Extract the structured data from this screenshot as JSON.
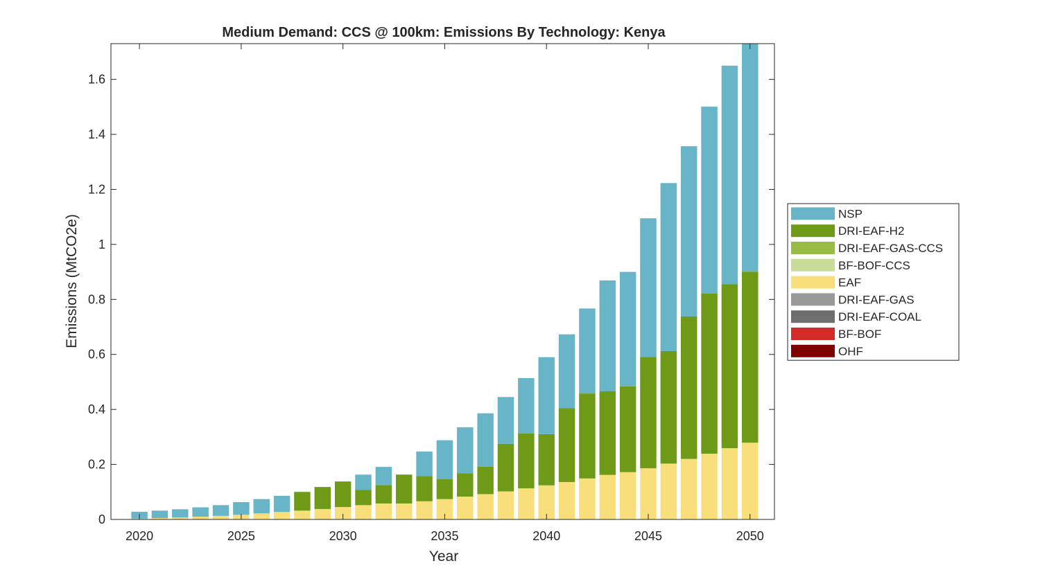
{
  "chart_data": {
    "type": "bar",
    "stacked": true,
    "title": "Medium Demand: CCS @ 100km: Emissions By Technology: Kenya",
    "xlabel": "Year",
    "ylabel": "Emissions (MtCO2e)",
    "xlim": [
      2018.6,
      2051.2
    ],
    "ylim": [
      0,
      1.73
    ],
    "xticks": [
      2020,
      2025,
      2030,
      2035,
      2040,
      2045,
      2050
    ],
    "xtick_labels": [
      "2020",
      "2025",
      "2030",
      "2035",
      "2040",
      "2045",
      "2050"
    ],
    "yticks": [
      0,
      0.2,
      0.4,
      0.6,
      0.8,
      1.0,
      1.2,
      1.4,
      1.6
    ],
    "ytick_labels": [
      "0",
      "0.2",
      "0.4",
      "0.6",
      "0.8",
      "1",
      "1.2",
      "1.4",
      "1.6"
    ],
    "grid": false,
    "legend_position": "outside-right",
    "categories": [
      2020,
      2021,
      2022,
      2023,
      2024,
      2025,
      2026,
      2027,
      2028,
      2029,
      2030,
      2031,
      2032,
      2033,
      2034,
      2035,
      2036,
      2037,
      2038,
      2039,
      2040,
      2041,
      2042,
      2043,
      2044,
      2045,
      2046,
      2047,
      2048,
      2049,
      2050
    ],
    "series": [
      {
        "name": "OHF",
        "color": "#7e0000",
        "values": [
          0,
          0,
          0,
          0,
          0,
          0,
          0,
          0,
          0,
          0,
          0,
          0,
          0,
          0,
          0,
          0,
          0,
          0,
          0,
          0,
          0,
          0,
          0,
          0,
          0,
          0,
          0,
          0,
          0,
          0,
          0
        ]
      },
      {
        "name": "BF-BOF",
        "color": "#d42a2a",
        "values": [
          0,
          0,
          0,
          0,
          0,
          0,
          0,
          0,
          0,
          0,
          0,
          0,
          0,
          0,
          0,
          0,
          0,
          0,
          0,
          0,
          0,
          0,
          0,
          0,
          0,
          0,
          0,
          0,
          0,
          0,
          0
        ]
      },
      {
        "name": "DRI-EAF-COAL",
        "color": "#6e6e6e",
        "values": [
          0,
          0,
          0,
          0,
          0,
          0,
          0,
          0,
          0,
          0,
          0,
          0,
          0,
          0,
          0,
          0,
          0,
          0,
          0,
          0,
          0,
          0,
          0,
          0,
          0,
          0,
          0,
          0,
          0,
          0,
          0
        ]
      },
      {
        "name": "DRI-EAF-GAS",
        "color": "#999999",
        "values": [
          0,
          0,
          0,
          0,
          0,
          0,
          0,
          0,
          0,
          0,
          0,
          0,
          0,
          0,
          0,
          0,
          0,
          0,
          0,
          0,
          0,
          0,
          0,
          0,
          0,
          0,
          0,
          0,
          0,
          0,
          0
        ]
      },
      {
        "name": "EAF",
        "color": "#f8df7c",
        "values": [
          0.003,
          0.005,
          0.007,
          0.01,
          0.013,
          0.017,
          0.022,
          0.027,
          0.032,
          0.038,
          0.045,
          0.052,
          0.058,
          0.058,
          0.066,
          0.074,
          0.083,
          0.092,
          0.102,
          0.113,
          0.124,
          0.136,
          0.149,
          0.162,
          0.172,
          0.186,
          0.203,
          0.22,
          0.239,
          0.259,
          0.279
        ]
      },
      {
        "name": "BF-BOF-CCS",
        "color": "#c9dc9a",
        "values": [
          0,
          0,
          0,
          0,
          0,
          0,
          0,
          0,
          0,
          0,
          0,
          0,
          0,
          0,
          0,
          0,
          0,
          0,
          0,
          0,
          0,
          0,
          0,
          0,
          0,
          0,
          0,
          0,
          0,
          0,
          0
        ]
      },
      {
        "name": "DRI-EAF-GAS-CCS",
        "color": "#99bc44",
        "values": [
          0,
          0,
          0,
          0,
          0,
          0,
          0,
          0,
          0,
          0,
          0,
          0,
          0,
          0,
          0,
          0,
          0,
          0,
          0,
          0,
          0,
          0,
          0,
          0,
          0,
          0,
          0,
          0,
          0,
          0,
          0
        ]
      },
      {
        "name": "DRI-EAF-H2",
        "color": "#6e9a18",
        "values": [
          0,
          0,
          0,
          0,
          0,
          0,
          0,
          0,
          0.068,
          0.08,
          0.093,
          0.055,
          0.067,
          0.105,
          0.092,
          0.072,
          0.085,
          0.1,
          0.173,
          0.2,
          0.186,
          0.269,
          0.309,
          0.304,
          0.312,
          0.405,
          0.409,
          0.518,
          0.582,
          0.596,
          0.622
        ]
      },
      {
        "name": "NSP",
        "color": "#67b5c6",
        "values": [
          0.025,
          0.027,
          0.03,
          0.034,
          0.039,
          0.046,
          0.052,
          0.059,
          0,
          0,
          0,
          0.056,
          0.066,
          0,
          0.089,
          0.142,
          0.167,
          0.194,
          0.17,
          0.201,
          0.28,
          0.268,
          0.309,
          0.403,
          0.416,
          0.504,
          0.611,
          0.619,
          0.68,
          0.795,
          0.829
        ]
      }
    ]
  }
}
